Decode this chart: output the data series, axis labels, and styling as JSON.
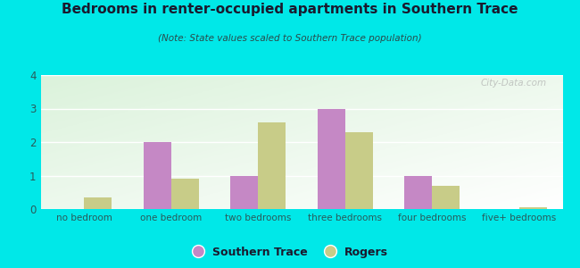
{
  "title": "Bedrooms in renter-occupied apartments in Southern Trace",
  "subtitle": "(Note: State values scaled to Southern Trace population)",
  "categories": [
    "no bedroom",
    "one bedroom",
    "two bedrooms",
    "three bedrooms",
    "four bedrooms",
    "five+ bedrooms"
  ],
  "southern_trace": [
    0,
    2.0,
    1.0,
    3.0,
    1.0,
    0
  ],
  "rogers": [
    0.35,
    0.9,
    2.6,
    2.3,
    0.7,
    0.05
  ],
  "southern_trace_color": "#c588c5",
  "rogers_color": "#c8cc88",
  "background_color": "#00e8e8",
  "ylim": [
    0,
    4
  ],
  "yticks": [
    0,
    1,
    2,
    3,
    4
  ],
  "bar_width": 0.32,
  "legend_southern": "Southern Trace",
  "legend_rogers": "Rogers",
  "watermark": "City-Data.com",
  "title_color": "#1a1a2e",
  "subtitle_color": "#2a4a4a",
  "tick_color": "#2a5a5a",
  "grid_color": "#ffffff"
}
